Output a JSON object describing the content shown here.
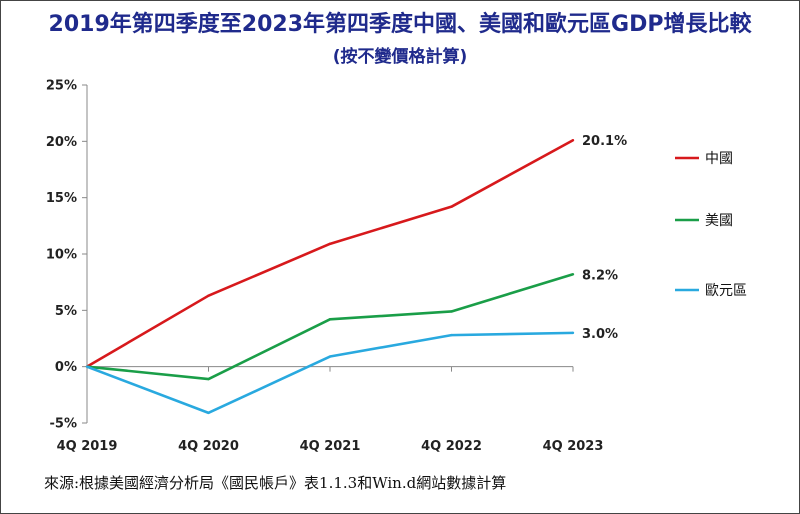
{
  "header": {
    "title": "2019年第四季度至2023年第四季度中國、美國和歐元區GDP增長比較",
    "subtitle": "(按不變價格計算)"
  },
  "footer": {
    "source": "來源:根據美國經濟分析局《國民帳戶》表1.1.3和Win.d網站數據計算"
  },
  "chart_data": {
    "type": "line",
    "title": "2019年第四季度至2023年第四季度中國、美國和歐元區GDP增長比較",
    "subtitle": "(按不變價格計算)",
    "categories": [
      "4Q 2019",
      "4Q 2020",
      "4Q 2021",
      "4Q 2022",
      "4Q 2023"
    ],
    "y_ticks": [
      "-5%",
      "0%",
      "5%",
      "10%",
      "15%",
      "20%",
      "25%"
    ],
    "y_tick_values": [
      -5,
      0,
      5,
      10,
      15,
      20,
      25
    ],
    "ylim": [
      -5,
      25
    ],
    "grid": false,
    "legend_position": "right",
    "series": [
      {
        "name": "中國",
        "color": "#d7191c",
        "values": [
          0,
          6.3,
          10.9,
          14.2,
          20.1
        ],
        "end_label": "20.1%"
      },
      {
        "name": "美國",
        "color": "#1a9e48",
        "values": [
          0,
          -1.1,
          4.2,
          4.9,
          8.2
        ],
        "end_label": "8.2%"
      },
      {
        "name": "歐元區",
        "color": "#29a9df",
        "values": [
          0,
          -4.1,
          0.9,
          2.8,
          3.0
        ],
        "end_label": "3.0%"
      }
    ]
  }
}
